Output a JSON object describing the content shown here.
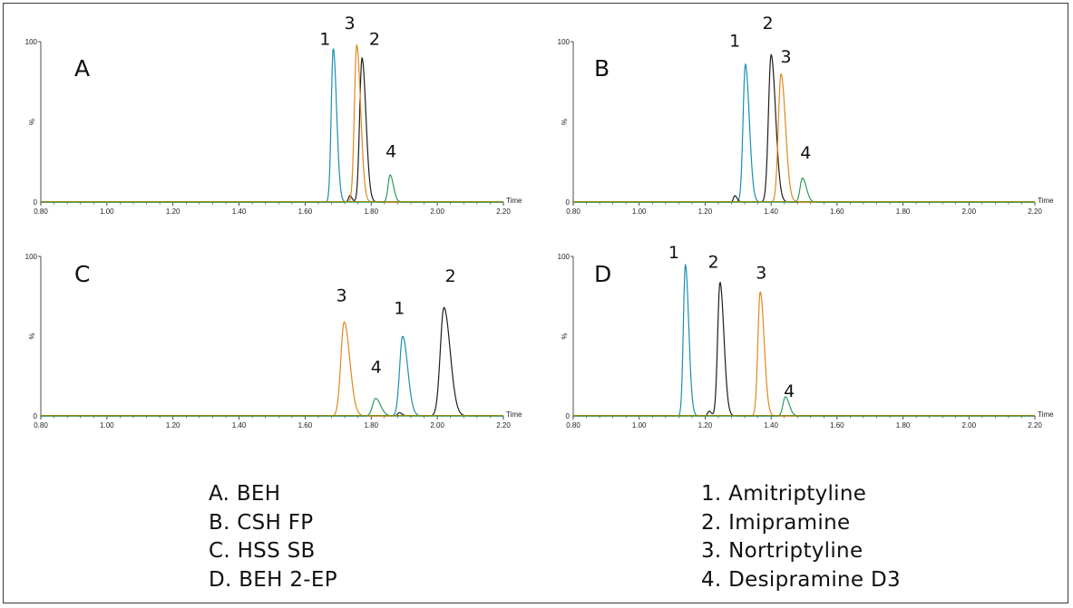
{
  "colors": {
    "amitriptyline": "#1a8fb3",
    "imipramine": "#1e1e1e",
    "nortriptyline": "#de8a1c",
    "desipramine": "#2e9a5e",
    "baseline": "#8a8a10"
  },
  "column_legend": [
    "A. BEH",
    "B. CSH FP",
    "C. HSS SB",
    "D. BEH 2-EP"
  ],
  "compound_legend": [
    "1. Amitriptyline",
    "2. Imipramine",
    "3. Nortriptyline",
    "4. Desipramine D3"
  ],
  "chart_data": [
    {
      "type": "line",
      "panel": "A",
      "x_axis_title": "Time",
      "ylabel": "%",
      "y_ticks": [
        "0",
        "%",
        "100"
      ],
      "xlim": [
        0.8,
        2.2
      ],
      "ylim": [
        0,
        100
      ],
      "x_ticks": [
        "0.80",
        "1.00",
        "1.20",
        "1.40",
        "1.60",
        "1.80",
        "2.00",
        "2.20"
      ],
      "series": [
        {
          "name": "Amitriptyline",
          "color_key": "amitriptyline",
          "peaks": [
            {
              "rt": 1.685,
              "height": 96,
              "width": 0.006
            }
          ]
        },
        {
          "name": "Imipramine",
          "color_key": "imipramine",
          "peaks": [
            {
              "rt": 1.735,
              "height": 4,
              "width": 0.004
            },
            {
              "rt": 1.772,
              "height": 90,
              "width": 0.007
            }
          ]
        },
        {
          "name": "Nortriptyline",
          "color_key": "nortriptyline",
          "peaks": [
            {
              "rt": 1.756,
              "height": 98,
              "width": 0.007
            }
          ]
        },
        {
          "name": "Desipramine D3",
          "color_key": "desipramine",
          "peaks": [
            {
              "rt": 1.857,
              "height": 17,
              "width": 0.006
            }
          ]
        }
      ],
      "annotations": [
        {
          "text": "1",
          "x": 1.66,
          "y": 98
        },
        {
          "text": "3",
          "x": 1.735,
          "y": 108
        },
        {
          "text": "2",
          "x": 1.81,
          "y": 98
        },
        {
          "text": "4",
          "x": 1.86,
          "y": 28
        }
      ]
    },
    {
      "type": "line",
      "panel": "B",
      "x_axis_title": "Time",
      "ylabel": "%",
      "y_ticks": [
        "0",
        "%",
        "100"
      ],
      "xlim": [
        0.8,
        2.2
      ],
      "ylim": [
        0,
        100
      ],
      "x_ticks": [
        "0.80",
        "1.00",
        "1.20",
        "1.40",
        "1.60",
        "1.80",
        "2.00",
        "2.20"
      ],
      "series": [
        {
          "name": "Amitriptyline",
          "color_key": "amitriptyline",
          "peaks": [
            {
              "rt": 1.322,
              "height": 86,
              "width": 0.007
            }
          ]
        },
        {
          "name": "Imipramine",
          "color_key": "imipramine",
          "peaks": [
            {
              "rt": 1.29,
              "height": 4,
              "width": 0.004
            },
            {
              "rt": 1.4,
              "height": 92,
              "width": 0.008
            }
          ]
        },
        {
          "name": "Nortriptyline",
          "color_key": "nortriptyline",
          "peaks": [
            {
              "rt": 1.43,
              "height": 80,
              "width": 0.008
            }
          ]
        },
        {
          "name": "Desipramine D3",
          "color_key": "desipramine",
          "peaks": [
            {
              "rt": 1.495,
              "height": 15,
              "width": 0.007
            }
          ]
        }
      ],
      "annotations": [
        {
          "text": "1",
          "x": 1.29,
          "y": 97
        },
        {
          "text": "2",
          "x": 1.39,
          "y": 108
        },
        {
          "text": "3",
          "x": 1.445,
          "y": 87
        },
        {
          "text": "4",
          "x": 1.505,
          "y": 27
        }
      ]
    },
    {
      "type": "line",
      "panel": "C",
      "x_axis_title": "Time",
      "ylabel": "%",
      "y_ticks": [
        "0",
        "%",
        "100"
      ],
      "xlim": [
        0.8,
        2.2
      ],
      "ylim": [
        0,
        100
      ],
      "x_ticks": [
        "0.80",
        "1.00",
        "1.20",
        "1.40",
        "1.60",
        "1.80",
        "2.00",
        "2.20"
      ],
      "series": [
        {
          "name": "Amitriptyline",
          "color_key": "amitriptyline",
          "peaks": [
            {
              "rt": 1.895,
              "height": 50,
              "width": 0.009
            }
          ]
        },
        {
          "name": "Imipramine",
          "color_key": "imipramine",
          "peaks": [
            {
              "rt": 1.885,
              "height": 2,
              "width": 0.005
            },
            {
              "rt": 2.02,
              "height": 68,
              "width": 0.011
            }
          ]
        },
        {
          "name": "Nortriptyline",
          "color_key": "nortriptyline",
          "peaks": [
            {
              "rt": 1.718,
              "height": 59,
              "width": 0.01
            }
          ]
        },
        {
          "name": "Desipramine D3",
          "color_key": "desipramine",
          "peaks": [
            {
              "rt": 1.813,
              "height": 11,
              "width": 0.009
            }
          ]
        }
      ],
      "annotations": [
        {
          "text": "3",
          "x": 1.71,
          "y": 72
        },
        {
          "text": "4",
          "x": 1.815,
          "y": 27
        },
        {
          "text": "1",
          "x": 1.885,
          "y": 64
        },
        {
          "text": "2",
          "x": 2.04,
          "y": 84
        }
      ]
    },
    {
      "type": "line",
      "panel": "D",
      "x_axis_title": "Time",
      "ylabel": "%",
      "y_ticks": [
        "0",
        "%",
        "100"
      ],
      "xlim": [
        0.8,
        2.2
      ],
      "ylim": [
        0,
        100
      ],
      "x_ticks": [
        "0.80",
        "1.00",
        "1.20",
        "1.40",
        "1.60",
        "1.80",
        "2.00",
        "2.20"
      ],
      "series": [
        {
          "name": "Amitriptyline",
          "color_key": "amitriptyline",
          "peaks": [
            {
              "rt": 1.14,
              "height": 95,
              "width": 0.006
            }
          ]
        },
        {
          "name": "Imipramine",
          "color_key": "imipramine",
          "peaks": [
            {
              "rt": 1.212,
              "height": 3,
              "width": 0.004
            },
            {
              "rt": 1.245,
              "height": 84,
              "width": 0.007
            }
          ]
        },
        {
          "name": "Nortriptyline",
          "color_key": "nortriptyline",
          "peaks": [
            {
              "rt": 1.367,
              "height": 78,
              "width": 0.007
            }
          ]
        },
        {
          "name": "Desipramine D3",
          "color_key": "desipramine",
          "peaks": [
            {
              "rt": 1.443,
              "height": 12,
              "width": 0.007
            }
          ]
        }
      ],
      "annotations": [
        {
          "text": "1",
          "x": 1.105,
          "y": 99
        },
        {
          "text": "2",
          "x": 1.225,
          "y": 93
        },
        {
          "text": "3",
          "x": 1.37,
          "y": 86
        },
        {
          "text": "4",
          "x": 1.455,
          "y": 12
        }
      ]
    }
  ]
}
